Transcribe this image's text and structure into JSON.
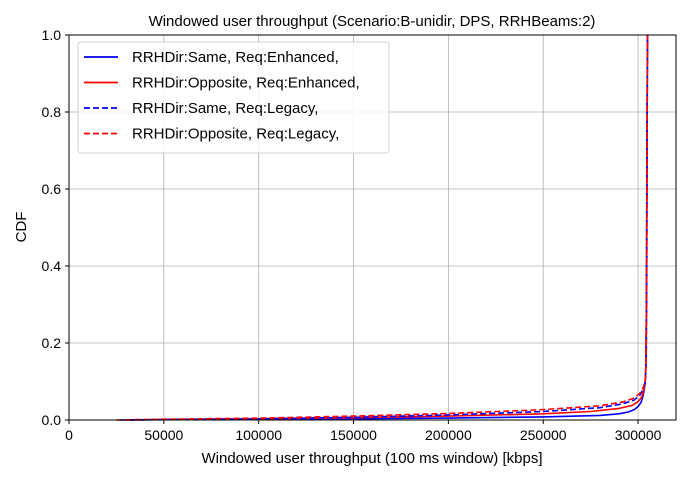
{
  "chart_data": {
    "type": "line",
    "title": "Windowed user throughput (Scenario:B-unidir, DPS, RRHBeams:2)",
    "xlabel": "Windowed user throughput (100 ms window) [kbps]",
    "ylabel": "CDF",
    "xlim": [
      0,
      320000
    ],
    "ylim": [
      0,
      1.0
    ],
    "xticks": [
      0,
      50000,
      100000,
      150000,
      200000,
      250000,
      300000
    ],
    "xtick_labels": [
      "0",
      "50000",
      "100000",
      "150000",
      "200000",
      "250000",
      "300000"
    ],
    "yticks": [
      0.0,
      0.2,
      0.4,
      0.6,
      0.8,
      1.0
    ],
    "ytick_labels": [
      "0.0",
      "0.2",
      "0.4",
      "0.6",
      "0.8",
      "1.0"
    ],
    "grid": true,
    "legend_position": "top-left",
    "series": [
      {
        "name": "RRHDir:Same, Req:Enhanced,",
        "color": "#0000ff",
        "linestyle": "solid",
        "x": [
          32000,
          60000,
          100000,
          150000,
          200000,
          250000,
          280000,
          290000,
          295000,
          298000,
          300000,
          301500,
          302500,
          303300,
          303800,
          304200,
          304400,
          304600,
          304800,
          305000
        ],
        "y": [
          0.0,
          0.001,
          0.002,
          0.003,
          0.005,
          0.008,
          0.012,
          0.016,
          0.021,
          0.027,
          0.035,
          0.045,
          0.06,
          0.08,
          0.1,
          0.15,
          0.3,
          0.6,
          0.9,
          1.0
        ]
      },
      {
        "name": "RRHDir:Opposite, Req:Enhanced,",
        "color": "#ff0000",
        "linestyle": "solid",
        "x": [
          30000,
          50000,
          100000,
          150000,
          200000,
          250000,
          275000,
          290000,
          297000,
          300000,
          302000,
          303200,
          304000,
          304400,
          304700,
          305000
        ],
        "y": [
          0.0,
          0.001,
          0.003,
          0.006,
          0.01,
          0.016,
          0.022,
          0.03,
          0.038,
          0.048,
          0.06,
          0.08,
          0.11,
          0.3,
          0.7,
          1.0
        ]
      },
      {
        "name": "RRHDir:Same, Req:Legacy,",
        "color": "#0000ff",
        "linestyle": "dashed",
        "x": [
          27000,
          50000,
          100000,
          150000,
          200000,
          250000,
          280000,
          292000,
          298000,
          301000,
          302800,
          303800,
          304300,
          304600,
          304800,
          305000
        ],
        "y": [
          0.0,
          0.001,
          0.003,
          0.007,
          0.013,
          0.022,
          0.032,
          0.042,
          0.052,
          0.065,
          0.08,
          0.1,
          0.15,
          0.4,
          0.8,
          1.0
        ]
      },
      {
        "name": "RRHDir:Opposite, Req:Legacy,",
        "color": "#ff0000",
        "linestyle": "dashed",
        "x": [
          25000,
          50000,
          100000,
          150000,
          200000,
          250000,
          280000,
          292000,
          298000,
          301000,
          302800,
          303800,
          304300,
          304600,
          304800,
          305000
        ],
        "y": [
          0.0,
          0.002,
          0.005,
          0.01,
          0.017,
          0.027,
          0.037,
          0.047,
          0.057,
          0.07,
          0.085,
          0.105,
          0.16,
          0.42,
          0.8,
          1.0
        ]
      }
    ]
  }
}
